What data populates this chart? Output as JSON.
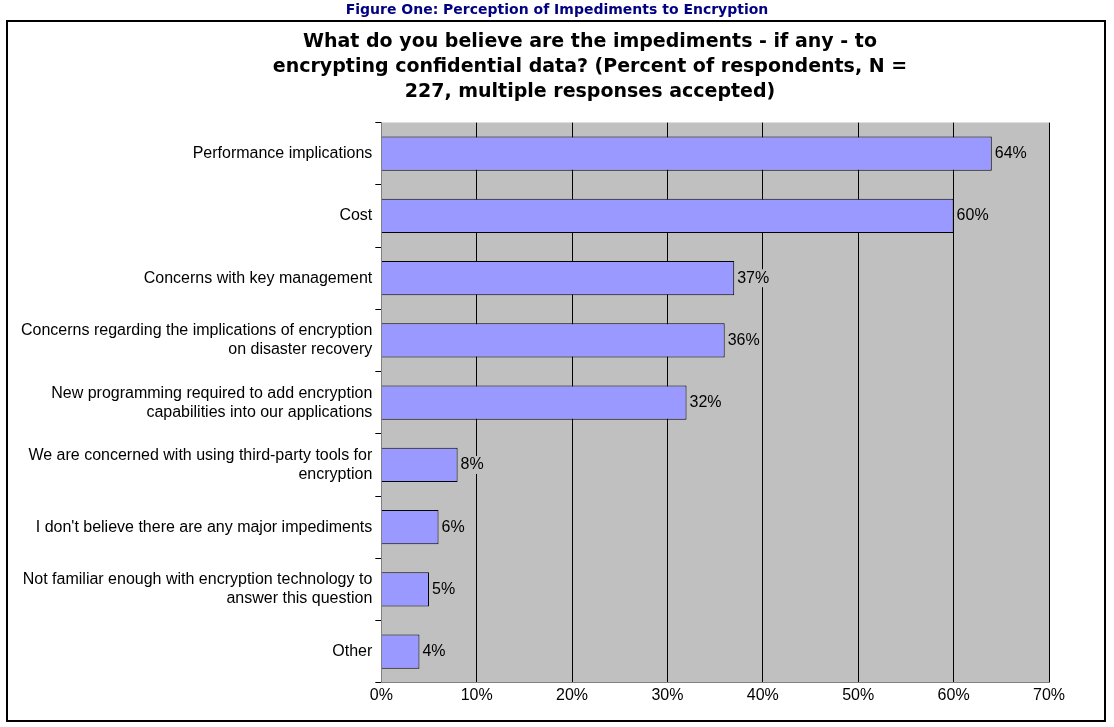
{
  "chart_data": {
    "type": "bar",
    "orientation": "horizontal",
    "title": "Figure One: Perception of Impediments to Encryption",
    "subtitle": "What do you believe are the impediments - if any - to encrypting confidential data? (Percent of respondents, N = 227, multiple responses accepted)",
    "categories": [
      "Performance implications",
      "Cost",
      "Concerns with key management",
      "Concerns regarding the implications of encryption on disaster recovery",
      "New programming required to add encryption capabilities into our applications",
      "We are concerned with using third-party tools for encryption",
      "I don't believe there are any major impediments",
      "Not familiar enough with encryption technology to answer this question",
      "Other"
    ],
    "values": [
      64,
      60,
      37,
      36,
      32,
      8,
      6,
      5,
      4
    ],
    "value_labels": [
      "64%",
      "60%",
      "37%",
      "36%",
      "32%",
      "8%",
      "6%",
      "5%",
      "4%"
    ],
    "color": "#9999ff",
    "xlim": [
      0,
      70
    ],
    "xticks": [
      {
        "value": 0,
        "label": "0%"
      },
      {
        "value": 10,
        "label": "10%"
      },
      {
        "value": 20,
        "label": "20%"
      },
      {
        "value": 30,
        "label": "30%"
      },
      {
        "value": 40,
        "label": "40%"
      },
      {
        "value": 50,
        "label": "50%"
      },
      {
        "value": 60,
        "label": "60%"
      },
      {
        "value": 70,
        "label": "70%"
      }
    ],
    "grid": "x",
    "legend": false
  }
}
